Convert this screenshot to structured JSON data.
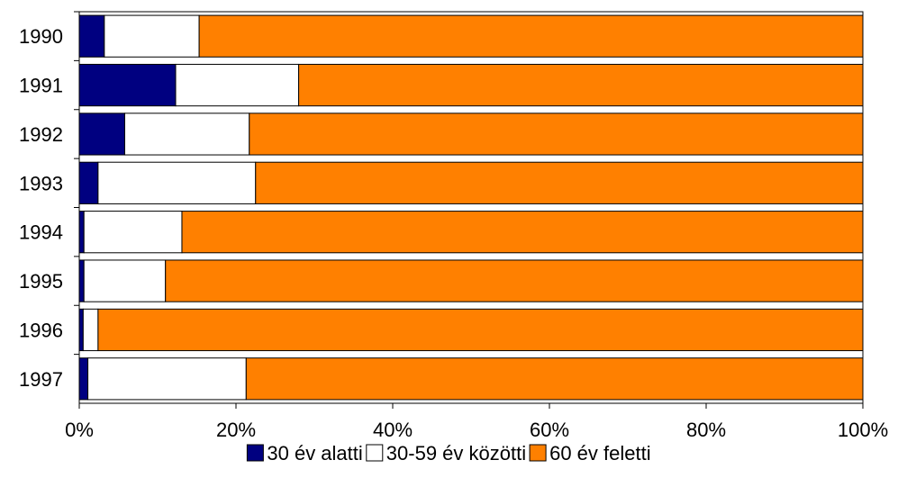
{
  "chart_data": {
    "type": "bar",
    "orientation": "horizontal",
    "stacked": true,
    "percent": true,
    "categories": [
      "1990",
      "1991",
      "1992",
      "1993",
      "1994",
      "1995",
      "1996",
      "1997"
    ],
    "series": [
      {
        "name": "30 év alatti",
        "color": "#000080",
        "values": [
          3.2,
          12.3,
          5.8,
          2.4,
          0.6,
          0.6,
          0.5,
          1.1
        ]
      },
      {
        "name": "30-59 év közötti",
        "color": "#ffffff",
        "values": [
          12.1,
          15.7,
          15.9,
          20.1,
          12.5,
          10.4,
          1.9,
          20.2
        ]
      },
      {
        "name": "60 év feletti",
        "color": "#ff8000",
        "values": [
          84.7,
          72.0,
          78.3,
          77.5,
          86.9,
          89.0,
          97.6,
          78.7
        ]
      }
    ],
    "x_ticks": [
      "0%",
      "20%",
      "40%",
      "60%",
      "80%",
      "100%"
    ],
    "xlim": [
      0,
      100
    ],
    "grid": false,
    "legend_position": "bottom",
    "title": "",
    "xlabel": "",
    "ylabel": ""
  }
}
